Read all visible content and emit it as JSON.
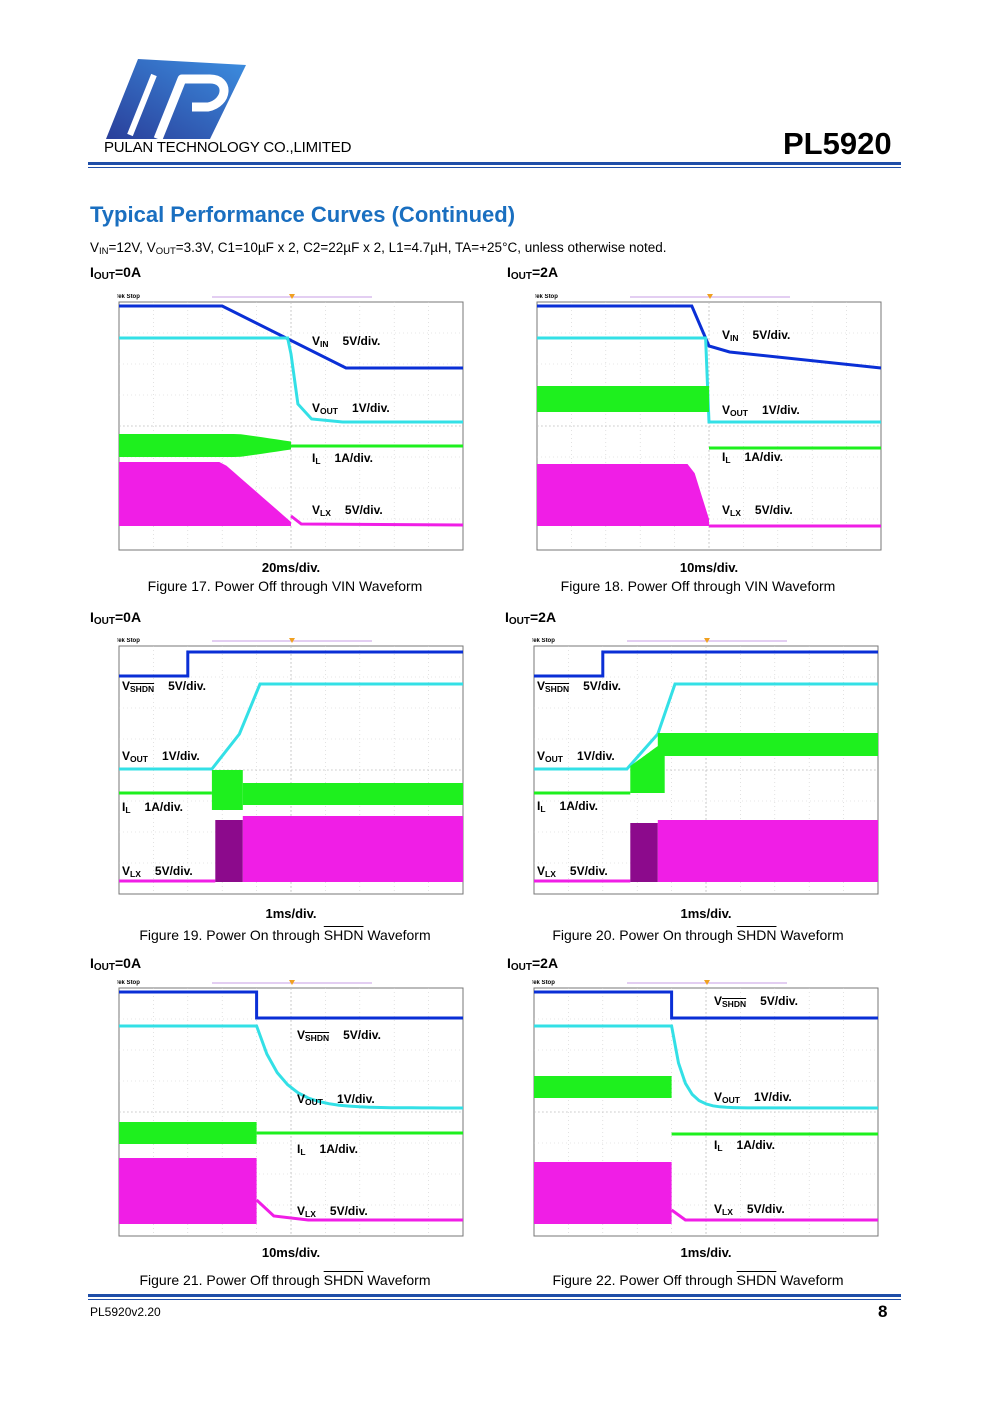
{
  "header": {
    "company": "PULAN TECHNOLOGY CO.,LIMITED",
    "part_number": "PL5920",
    "logo_icon": "pulan-p-logo-icon",
    "logo_colors": [
      "#2a3f9a",
      "#3c8ee0"
    ]
  },
  "section_title": "Typical Performance Curves (Continued)",
  "conditions": {
    "vin_label": "V",
    "vin_sub": "IN",
    "vin_value": "=12V,",
    "vout_label": "V",
    "vout_sub": "OUT",
    "vout_value": "=3.3V, C1=10µF x 2, C2=22µF x 2, L1=4.7µH, TA=+25°C, unless otherwise noted."
  },
  "trace_colors": {
    "ch1": "#0a2fd6",
    "ch2": "#33e0e6",
    "ch3": "#1ef01e",
    "ch4": "#f01ee6"
  },
  "scope_status": "Tek Stop",
  "figures": [
    {
      "iout": "I",
      "iout_sub": "OUT",
      "iout_value": "=0A",
      "time_div": "20ms/div.",
      "caption_pre": "Figure 17. Power Off through VIN Waveform",
      "caption_ovl": "",
      "caption_post": "",
      "labels": [
        {
          "main": "V",
          "sub": "IN",
          "ovl": false,
          "scale": "5V/div."
        },
        {
          "main": "V",
          "sub": "OUT",
          "ovl": false,
          "scale": "1V/div."
        },
        {
          "main": "I",
          "sub": "L",
          "ovl": false,
          "scale": "1A/div."
        },
        {
          "main": "V",
          "sub": "LX",
          "ovl": false,
          "scale": "5V/div."
        }
      ]
    },
    {
      "iout": "I",
      "iout_sub": "OUT",
      "iout_value": "=2A",
      "time_div": "10ms/div.",
      "caption_pre": "Figure 18. Power Off through VIN Waveform",
      "caption_ovl": "",
      "caption_post": "",
      "labels": [
        {
          "main": "V",
          "sub": "IN",
          "ovl": false,
          "scale": "5V/div."
        },
        {
          "main": "V",
          "sub": "OUT",
          "ovl": false,
          "scale": "1V/div."
        },
        {
          "main": "I",
          "sub": "L",
          "ovl": false,
          "scale": "1A/div."
        },
        {
          "main": "V",
          "sub": "LX",
          "ovl": false,
          "scale": "5V/div."
        }
      ]
    },
    {
      "iout": "I",
      "iout_sub": "OUT",
      "iout_value": "=0A",
      "time_div": "1ms/div.",
      "caption_pre": "Figure 19. Power On through ",
      "caption_ovl": "SHDN",
      "caption_post": " Waveform",
      "labels": [
        {
          "main": "V",
          "sub": "SHDN",
          "ovl": true,
          "scale": "5V/div."
        },
        {
          "main": "V",
          "sub": "OUT",
          "ovl": false,
          "scale": "1V/div."
        },
        {
          "main": "I",
          "sub": "L",
          "ovl": false,
          "scale": "1A/div."
        },
        {
          "main": "V",
          "sub": "LX",
          "ovl": false,
          "scale": "5V/div."
        }
      ]
    },
    {
      "iout": "I",
      "iout_sub": "OUT",
      "iout_value": "=2A",
      "time_div": "1ms/div.",
      "caption_pre": "Figure 20. Power On through ",
      "caption_ovl": "SHDN",
      "caption_post": " Waveform",
      "labels": [
        {
          "main": "V",
          "sub": "SHDN",
          "ovl": true,
          "scale": "5V/div."
        },
        {
          "main": "V",
          "sub": "OUT",
          "ovl": false,
          "scale": "1V/div."
        },
        {
          "main": "I",
          "sub": "L",
          "ovl": false,
          "scale": "1A/div."
        },
        {
          "main": "V",
          "sub": "LX",
          "ovl": false,
          "scale": "5V/div."
        }
      ]
    },
    {
      "iout": "I",
      "iout_sub": "OUT",
      "iout_value": "=0A",
      "time_div": "10ms/div.",
      "caption_pre": "Figure 21. Power Off through ",
      "caption_ovl": "SHDN",
      "caption_post": " Waveform",
      "labels": [
        {
          "main": "V",
          "sub": "SHDN",
          "ovl": true,
          "scale": "5V/div."
        },
        {
          "main": "V",
          "sub": "OUT",
          "ovl": false,
          "scale": "1V/div."
        },
        {
          "main": "I",
          "sub": "L",
          "ovl": false,
          "scale": "1A/div."
        },
        {
          "main": "V",
          "sub": "LX",
          "ovl": false,
          "scale": "5V/div."
        }
      ]
    },
    {
      "iout": "I",
      "iout_sub": "OUT",
      "iout_value": "=2A",
      "time_div": "1ms/div.",
      "caption_pre": "Figure 22. Power Off through ",
      "caption_ovl": "SHDN",
      "caption_post": " Waveform",
      "labels": [
        {
          "main": "V",
          "sub": "SHDN",
          "ovl": true,
          "scale": "5V/div."
        },
        {
          "main": "V",
          "sub": "OUT",
          "ovl": false,
          "scale": "1V/div."
        },
        {
          "main": "I",
          "sub": "L",
          "ovl": false,
          "scale": "1A/div."
        },
        {
          "main": "V",
          "sub": "LX",
          "ovl": false,
          "scale": "5V/div."
        }
      ]
    }
  ],
  "footer": {
    "doc_version": "PL5920v2.20",
    "page_number": "8"
  }
}
